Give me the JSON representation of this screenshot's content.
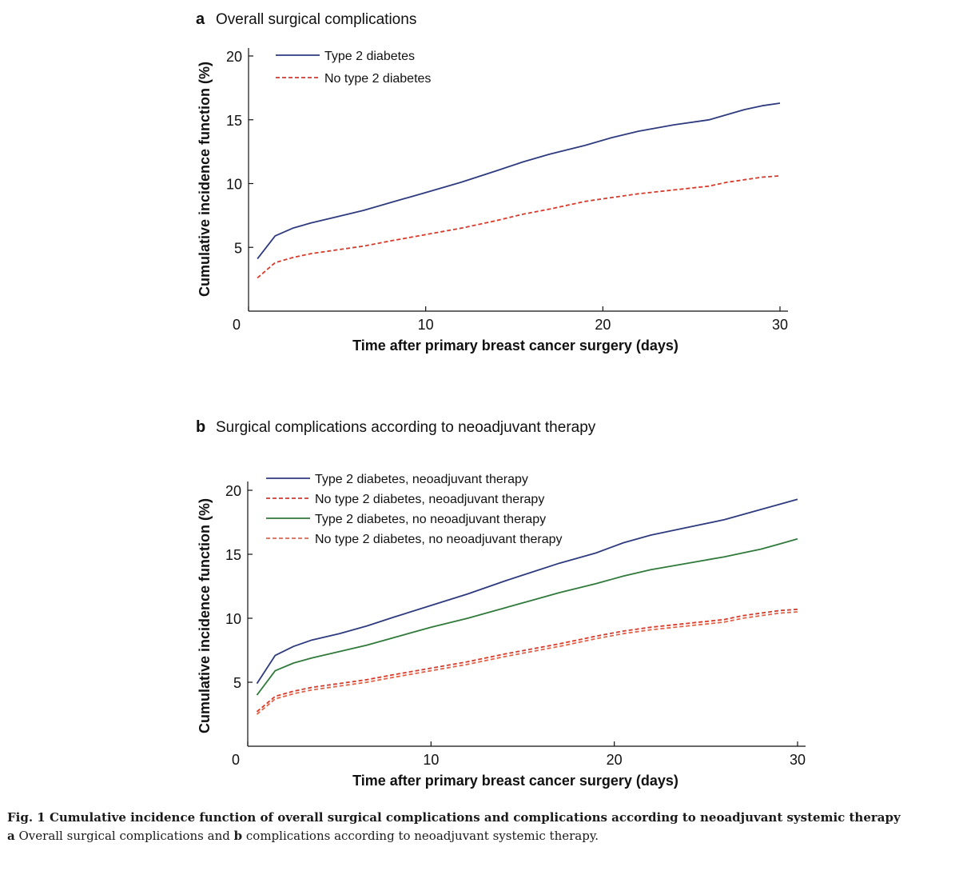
{
  "chart_data": [
    {
      "type": "line",
      "panel_letter": "a",
      "title": "Overall surgical complications",
      "xlabel": "Time after primary breast cancer surgery (days)",
      "ylabel": "Cumulative incidence function (%)",
      "xlim": [
        0,
        30
      ],
      "ylim": [
        0,
        20
      ],
      "xticks": [
        0,
        10,
        20,
        30
      ],
      "yticks": [
        5,
        10,
        15,
        20
      ],
      "grid": false,
      "legend_position": "top-left",
      "x": [
        0.5,
        1.5,
        2.5,
        3.5,
        5,
        6.5,
        8,
        10,
        12,
        14,
        15.5,
        17,
        19,
        20.5,
        22,
        24,
        26,
        27,
        28,
        29,
        30
      ],
      "series": [
        {
          "name": "Type 2 diabetes",
          "color": "#2e3a7e",
          "dash": "solid",
          "values": [
            4.1,
            5.9,
            6.5,
            6.9,
            7.4,
            7.9,
            8.5,
            9.3,
            10.1,
            11.0,
            11.7,
            12.3,
            13.0,
            13.6,
            14.1,
            14.6,
            15.0,
            15.4,
            15.8,
            16.1,
            16.3
          ]
        },
        {
          "name": "No type 2 diabetes",
          "color": "#d63a2a",
          "dash": "dashed",
          "values": [
            2.6,
            3.8,
            4.2,
            4.5,
            4.8,
            5.1,
            5.5,
            6.0,
            6.5,
            7.1,
            7.6,
            8.0,
            8.6,
            8.9,
            9.2,
            9.5,
            9.8,
            10.1,
            10.3,
            10.5,
            10.6
          ]
        }
      ]
    },
    {
      "type": "line",
      "panel_letter": "b",
      "title": "Surgical complications according to neoadjuvant therapy",
      "xlabel": "Time after primary breast cancer surgery (days)",
      "ylabel": "Cumulative incidence function (%)",
      "xlim": [
        0,
        30
      ],
      "ylim": [
        0,
        20
      ],
      "xticks": [
        0,
        10,
        20,
        30
      ],
      "yticks": [
        5,
        10,
        15,
        20
      ],
      "grid": false,
      "legend_position": "top-left",
      "x": [
        0.5,
        1.5,
        2.5,
        3.5,
        5,
        6.5,
        8,
        10,
        12,
        14,
        15.5,
        17,
        19,
        20.5,
        22,
        24,
        26,
        27,
        28,
        29,
        30
      ],
      "series": [
        {
          "name": "Type 2 diabetes, neoadjuvant therapy",
          "color": "#2e3a7e",
          "dash": "solid",
          "values": [
            4.9,
            7.1,
            7.8,
            8.3,
            8.8,
            9.4,
            10.1,
            11.0,
            11.9,
            12.9,
            13.6,
            14.3,
            15.1,
            15.9,
            16.5,
            17.1,
            17.7,
            18.1,
            18.5,
            18.9,
            19.3
          ]
        },
        {
          "name": "No type 2 diabetes, neoadjuvant therapy",
          "color": "#d63a2a",
          "dash": "dashed",
          "values": [
            2.7,
            3.9,
            4.3,
            4.6,
            4.9,
            5.2,
            5.6,
            6.1,
            6.6,
            7.2,
            7.6,
            8.0,
            8.6,
            9.0,
            9.3,
            9.6,
            9.9,
            10.2,
            10.4,
            10.6,
            10.7
          ]
        },
        {
          "name": "Type 2 diabetes, no neoadjuvant therapy",
          "color": "#2f7a3a",
          "dash": "solid",
          "values": [
            4.0,
            5.9,
            6.5,
            6.9,
            7.4,
            7.9,
            8.5,
            9.3,
            10.0,
            10.8,
            11.4,
            12.0,
            12.7,
            13.3,
            13.8,
            14.3,
            14.8,
            15.1,
            15.4,
            15.8,
            16.2
          ]
        },
        {
          "name": "No type 2 diabetes, no neoadjuvant therapy",
          "color": "#e0644a",
          "dash": "dashed",
          "values": [
            2.5,
            3.7,
            4.1,
            4.4,
            4.7,
            5.0,
            5.4,
            5.9,
            6.4,
            7.0,
            7.4,
            7.8,
            8.4,
            8.8,
            9.1,
            9.4,
            9.7,
            10.0,
            10.2,
            10.4,
            10.5
          ]
        }
      ]
    }
  ],
  "caption": {
    "line1": "Fig. 1 Cumulative incidence function of overall surgical complications and complications according to neoadjuvant systemic therapy",
    "line2_a": "a",
    "line2_part1": " Overall surgical complications and ",
    "line2_b": "b",
    "line2_part2": " complications according to neoadjuvant systemic therapy."
  }
}
